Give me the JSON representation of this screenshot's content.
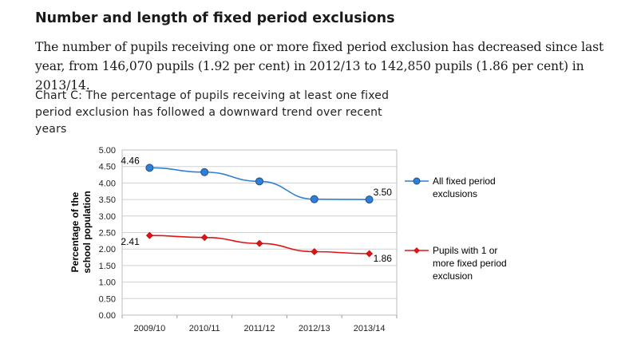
{
  "heading": "Number and length of fixed period exclusions",
  "paragraph": "The number of pupils receiving one or more fixed period exclusion has decreased since last year, from 146,070 pupils (1.92 per cent) in 2012/13 to 142,850 pupils (1.86 per cent) in 2013/14.",
  "caption": "Chart C: The percentage of pupils receiving at least one fixed period exclusion has followed a downward trend over recent years",
  "chart_data": {
    "type": "line",
    "categories": [
      "2009/10",
      "2010/11",
      "2011/12",
      "2012/13",
      "2013/14"
    ],
    "series": [
      {
        "name": "All fixed period exclusions",
        "values": [
          4.46,
          4.33,
          4.05,
          3.51,
          3.5
        ],
        "color": "#2f7fd6",
        "marker": "circle",
        "data_labels": [
          {
            "index": 0,
            "text": "4.46"
          },
          {
            "index": 4,
            "text": "3.50"
          }
        ]
      },
      {
        "name": "Pupils with 1 or more fixed period exclusion",
        "values": [
          2.41,
          2.35,
          2.17,
          1.92,
          1.86
        ],
        "color": "#e01414",
        "marker": "diamond",
        "data_labels": [
          {
            "index": 0,
            "text": "2.41"
          },
          {
            "index": 4,
            "text": "1.86"
          }
        ]
      }
    ],
    "ylabel": "Percentage of the school population",
    "ylim": [
      0,
      5
    ],
    "yticks": [
      "0.00",
      "0.50",
      "1.00",
      "1.50",
      "2.00",
      "2.50",
      "3.00",
      "3.50",
      "4.00",
      "4.50",
      "5.00"
    ],
    "legend": "right",
    "legend_lines": [
      [
        "All fixed period",
        "exclusions"
      ],
      [
        "Pupils with 1 or",
        "more fixed period",
        "exclusion"
      ]
    ]
  }
}
